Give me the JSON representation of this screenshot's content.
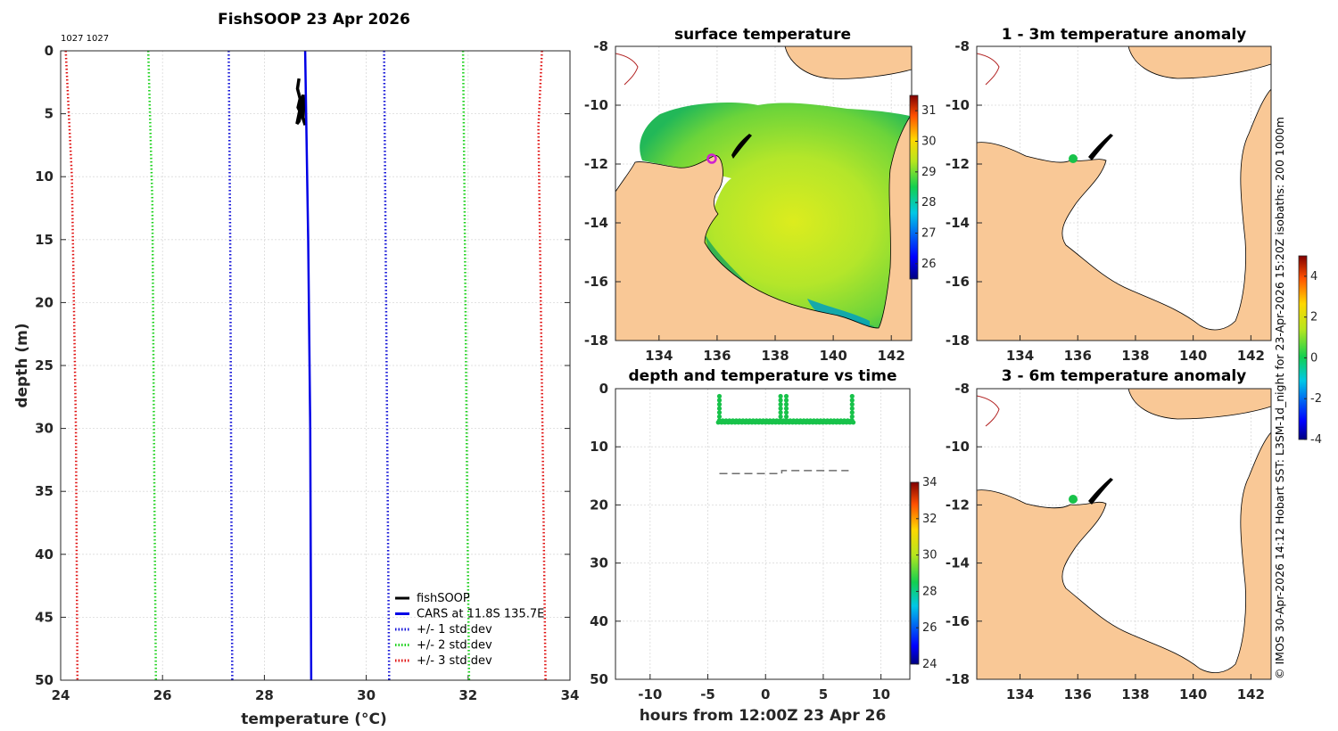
{
  "figure_title": "FishSOOP 23 Apr 2026",
  "profile_ids": "1027 1027",
  "side_note": "© IMOS 30-Apr-2026 14:12 Hobart SST: L3SM-1d_night for 23-Apr-2026 15:20Z isobaths: 200  1000m",
  "colors": {
    "land": "#f9c896",
    "fishsoop": "#000000",
    "cars": "#0000e6",
    "std1": "#1414d8",
    "std2": "#1ed21e",
    "std3": "#e01010",
    "point": "#18c24a",
    "marker": "#d020d0",
    "depthline": "#6e6e6e"
  },
  "chart_data": [
    {
      "type": "line",
      "name": "profile",
      "title": "FishSOOP 23 Apr 2026",
      "xlabel": "temperature (°C)",
      "ylabel": "depth (m)",
      "xlim": [
        24,
        34
      ],
      "ylim": [
        0,
        50
      ],
      "y_reversed": true,
      "xticks": [
        "24",
        "26",
        "28",
        "30",
        "32",
        "34"
      ],
      "yticks": [
        "0",
        "5",
        "10",
        "15",
        "20",
        "25",
        "30",
        "35",
        "40",
        "45",
        "50"
      ],
      "grid": true,
      "legend_position": "bottom-right",
      "series": [
        {
          "name": "fishSOOP",
          "style": "solid",
          "x": [
            28.68,
            28.65,
            28.7,
            28.66,
            28.72,
            28.68,
            28.64,
            28.7,
            28.76,
            28.78,
            28.74,
            28.8,
            28.76,
            28.78
          ],
          "y": [
            2.2,
            3.0,
            3.8,
            4.5,
            5.0,
            5.6,
            5.8,
            4.6,
            3.5,
            4.2,
            5.0,
            5.9,
            5.4,
            3.8
          ]
        },
        {
          "name": "CARS at 11.8S 135.7E",
          "style": "solid",
          "x": [
            28.8,
            28.82,
            28.86,
            28.9,
            28.92
          ],
          "y": [
            0,
            5,
            15,
            30,
            50
          ]
        },
        {
          "name": "+/- 1 std dev",
          "style": "dotted",
          "x": [
            27.3,
            27.33,
            27.35,
            27.37
          ],
          "y": [
            0,
            15,
            35,
            50
          ],
          "x2": [
            30.35,
            30.38,
            30.42,
            30.45
          ],
          "y2": [
            0,
            15,
            35,
            50
          ]
        },
        {
          "name": "+/- 2 std dev",
          "style": "dotted",
          "x": [
            25.72,
            25.8,
            25.84,
            25.87
          ],
          "y": [
            0,
            12,
            35,
            50
          ],
          "x2": [
            31.9,
            31.93,
            31.98,
            32.02
          ],
          "y2": [
            0,
            12,
            35,
            50
          ]
        },
        {
          "name": "+/- 3 std dev",
          "style": "dotted",
          "x": [
            24.1,
            24.22,
            24.3,
            24.33
          ],
          "y": [
            0,
            10,
            30,
            50
          ],
          "x2": [
            33.45,
            33.38,
            33.46,
            33.52
          ],
          "y2": [
            0,
            6,
            30,
            50
          ]
        }
      ]
    },
    {
      "type": "heatmap",
      "name": "surface_temperature_map",
      "title": "surface temperature",
      "xlim": [
        132.5,
        142.7
      ],
      "ylim": [
        -18,
        -8
      ],
      "xticks": [
        "134",
        "136",
        "138",
        "140",
        "142"
      ],
      "yticks": [
        "-8",
        "-10",
        "-12",
        "-14",
        "-16",
        "-18"
      ],
      "colorbar_range": [
        25.5,
        31.5
      ],
      "colorbar_ticks": [
        "31",
        "30",
        "29",
        "28",
        "27",
        "26"
      ],
      "vessel_position": {
        "lon": 135.7,
        "lat": -11.8
      }
    },
    {
      "type": "heatmap",
      "name": "anomaly_1_3m",
      "title": "1 - 3m temperature anomaly",
      "xlim": [
        132.5,
        142.7
      ],
      "ylim": [
        -18,
        -8
      ],
      "xticks": [
        "134",
        "136",
        "138",
        "140",
        "142"
      ],
      "yticks": [
        "-8",
        "-10",
        "-12",
        "-14",
        "-16",
        "-18"
      ],
      "point": {
        "lon": 135.8,
        "lat": -11.8,
        "anomaly": 0
      }
    },
    {
      "type": "heatmap",
      "name": "anomaly_3_6m",
      "title": "3 - 6m temperature anomaly",
      "xlim": [
        132.5,
        142.7
      ],
      "ylim": [
        -18,
        -8
      ],
      "xticks": [
        "134",
        "136",
        "138",
        "140",
        "142"
      ],
      "yticks": [
        "-8",
        "-10",
        "-12",
        "-14",
        "-16",
        "-18"
      ],
      "point": {
        "lon": 135.8,
        "lat": -11.8,
        "anomaly": 0
      }
    },
    {
      "type": "scatter",
      "name": "depth_temperature_time",
      "title": "depth and temperature vs time",
      "xlabel": "hours from 12:00Z 23 Apr 26",
      "xlim": [
        -13,
        12.5
      ],
      "ylim": [
        0,
        50
      ],
      "y_reversed": true,
      "xticks": [
        "-10",
        "-5",
        "0",
        "5",
        "10"
      ],
      "yticks": [
        "0",
        "10",
        "20",
        "30",
        "40",
        "50"
      ],
      "grid": true,
      "colorbar_range": [
        24,
        34
      ],
      "colorbar_ticks": [
        "34",
        "32",
        "30",
        "28",
        "26",
        "24"
      ],
      "series": [
        {
          "name": "samples",
          "time_start": -4.1,
          "time_end": 7.6,
          "bottom_depth": 5.6,
          "spike_times": [
            -4.0,
            1.3,
            1.8,
            7.5
          ],
          "spike_top": 1.3,
          "color_value": 28.7
        },
        {
          "name": "bottom",
          "style": "dashed",
          "x": [
            -4.0,
            1.4,
            1.4,
            7.2
          ],
          "y": [
            14.6,
            14.6,
            14.1,
            14.1
          ]
        }
      ],
      "anomaly_colorbar": {
        "range": [
          -4,
          5
        ],
        "ticks": [
          "4",
          "2",
          "0",
          "-2",
          "-4"
        ]
      }
    }
  ]
}
